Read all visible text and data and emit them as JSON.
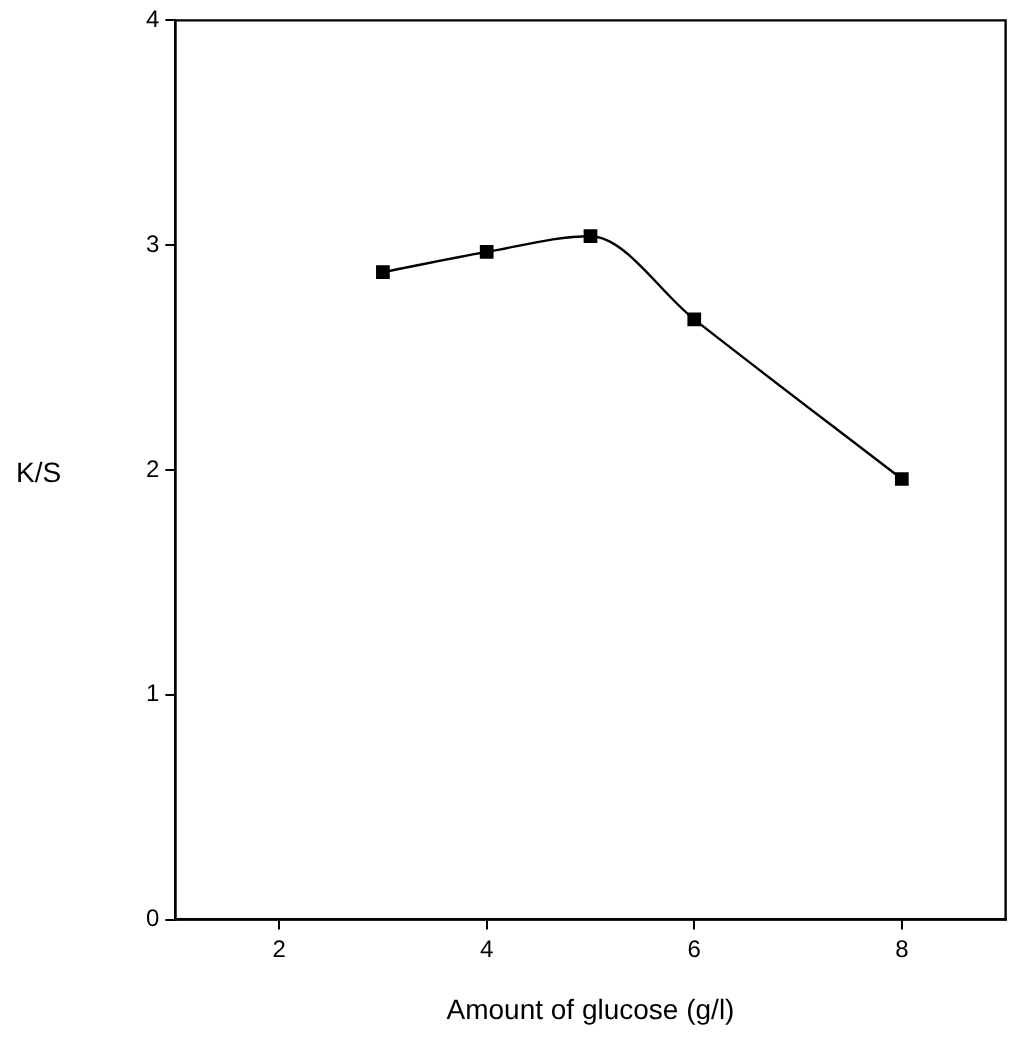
{
  "chart_data": {
    "type": "line",
    "xlabel": "Amount of glucose (g/l)",
    "ylabel": "K/S",
    "x": [
      3,
      4,
      5,
      6,
      8
    ],
    "series": [
      {
        "color": "#000000",
        "values": [
          2.88,
          2.97,
          3.04,
          2.67,
          1.96
        ]
      }
    ],
    "xlim": [
      1,
      9
    ],
    "xticks": [
      2,
      4,
      6,
      8
    ],
    "ylim": [
      0,
      4
    ],
    "yticks": [
      0,
      1,
      2,
      3,
      4
    ],
    "grid": false,
    "legend": false,
    "marker": "square",
    "line_style": "solid"
  }
}
